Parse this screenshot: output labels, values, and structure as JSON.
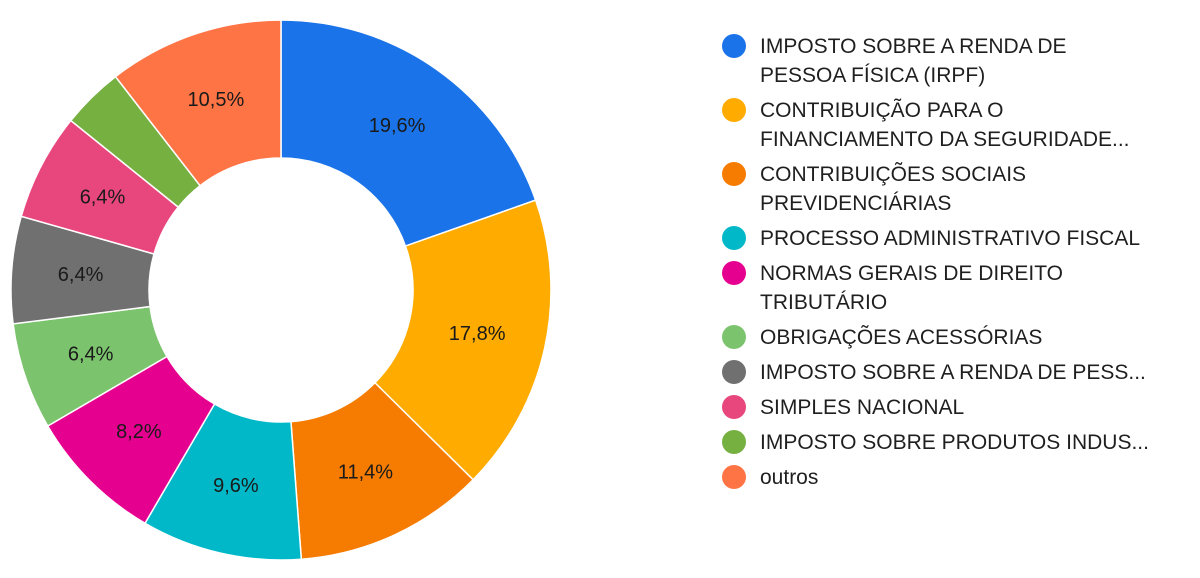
{
  "chart_data": {
    "type": "pie",
    "donut": true,
    "categories": [
      "IMPOSTO SOBRE A RENDA DE PESSOA FÍSICA (IRPF)",
      "CONTRIBUIÇÃO PARA O FINANCIAMENTO DA SEGURIDADE...",
      "CONTRIBUIÇÕES SOCIAIS PREVIDENCIÁRIAS",
      "PROCESSO ADMINISTRATIVO FISCAL",
      "NORMAS GERAIS DE DIREITO TRIBUTÁRIO",
      "OBRIGAÇÕES ACESSÓRIAS",
      "IMPOSTO SOBRE A RENDA DE PESS...",
      "SIMPLES NACIONAL",
      "IMPOSTO SOBRE PRODUTOS INDUS...",
      "outros"
    ],
    "legend_display": [
      "IMPOSTO SOBRE A RENDA DE\nPESSOA FÍSICA (IRPF)",
      "CONTRIBUIÇÃO PARA O\nFINANCIAMENTO DA SEGURIDADE...",
      "CONTRIBUIÇÕES SOCIAIS\nPREVIDENCIÁRIAS",
      "PROCESSO ADMINISTRATIVO FISCAL",
      "NORMAS GERAIS DE DIREITO\nTRIBUTÁRIO",
      "OBRIGAÇÕES ACESSÓRIAS",
      "IMPOSTO SOBRE A RENDA DE PESS...",
      "SIMPLES NACIONAL",
      "IMPOSTO SOBRE PRODUTOS INDUS...",
      "outros"
    ],
    "values": [
      19.6,
      17.8,
      11.4,
      9.6,
      8.2,
      6.4,
      6.4,
      6.4,
      3.7,
      10.5
    ],
    "labels": [
      "19,6%",
      "17,8%",
      "11,4%",
      "9,6%",
      "8,2%",
      "6,4%",
      "6,4%",
      "6,4%",
      "",
      "10,5%"
    ],
    "colors": [
      "#1a73e8",
      "#ffab00",
      "#f57c00",
      "#00b8c8",
      "#e6008f",
      "#7cc36e",
      "#707070",
      "#e8477d",
      "#76b041",
      "#ff7445"
    ],
    "legend_position": "right"
  }
}
